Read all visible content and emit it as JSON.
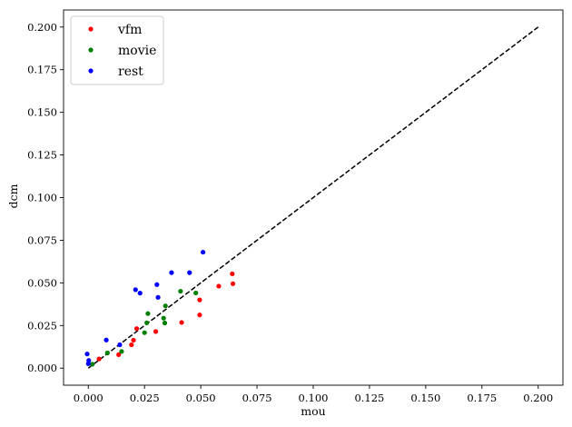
{
  "chart_data": {
    "type": "scatter",
    "xlabel": "mou",
    "ylabel": "dcm",
    "xlim": [
      -0.011,
      0.211
    ],
    "ylim": [
      -0.01,
      0.21
    ],
    "xticks": [
      "0.000",
      "0.025",
      "0.050",
      "0.075",
      "0.100",
      "0.125",
      "0.150",
      "0.175",
      "0.200"
    ],
    "yticks": [
      "0.000",
      "0.025",
      "0.050",
      "0.075",
      "0.100",
      "0.125",
      "0.150",
      "0.175",
      "0.200"
    ],
    "grid": false,
    "legend_position": "top-left",
    "reference_line": {
      "style": "dashed",
      "color": "#000000",
      "from": [
        0,
        0
      ],
      "to": [
        0.2,
        0.2
      ]
    },
    "series": [
      {
        "name": "vfm",
        "color": "#ff0000",
        "points": [
          [
            0.0048,
            0.0054
          ],
          [
            0.0135,
            0.0079
          ],
          [
            0.0192,
            0.0137
          ],
          [
            0.0201,
            0.0164
          ],
          [
            0.0215,
            0.0232
          ],
          [
            0.03,
            0.0215
          ],
          [
            0.0415,
            0.0268
          ],
          [
            0.0495,
            0.0312
          ],
          [
            0.0495,
            0.04
          ],
          [
            0.058,
            0.0481
          ],
          [
            0.064,
            0.0553
          ],
          [
            0.0643,
            0.0495
          ]
        ]
      },
      {
        "name": "movie",
        "color": "#008000",
        "points": [
          [
            0.0018,
            0.0023
          ],
          [
            0.0085,
            0.0089
          ],
          [
            0.0148,
            0.0098
          ],
          [
            0.025,
            0.0208
          ],
          [
            0.026,
            0.0266
          ],
          [
            0.0265,
            0.032
          ],
          [
            0.0335,
            0.0293
          ],
          [
            0.034,
            0.0265
          ],
          [
            0.0343,
            0.0365
          ],
          [
            0.041,
            0.0451
          ],
          [
            0.0478,
            0.0441
          ]
        ]
      },
      {
        "name": "rest",
        "color": "#0000ff",
        "points": [
          [
            -0.0005,
            0.0083
          ],
          [
            0.0,
            0.0026
          ],
          [
            0.0002,
            0.0045
          ],
          [
            0.008,
            0.0165
          ],
          [
            0.014,
            0.0137
          ],
          [
            0.021,
            0.046
          ],
          [
            0.023,
            0.044
          ],
          [
            0.0305,
            0.049
          ],
          [
            0.031,
            0.0415
          ],
          [
            0.037,
            0.056
          ],
          [
            0.045,
            0.056
          ],
          [
            0.051,
            0.068
          ]
        ]
      }
    ]
  }
}
